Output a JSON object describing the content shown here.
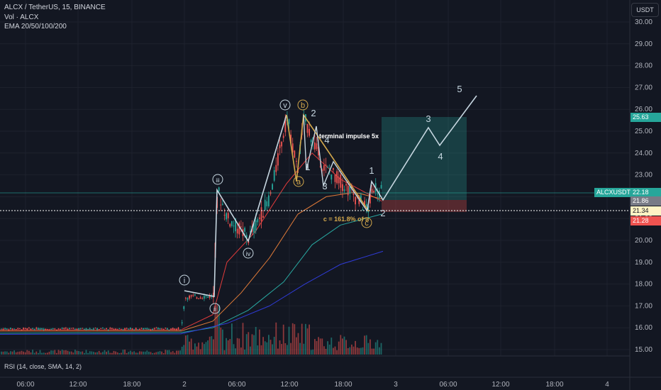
{
  "legend": {
    "pair": "ALCX / TetherUS, 15, BINANCE",
    "vol": "Vol · ALCX",
    "ema": "EMA 20/50/100/200"
  },
  "currency_button": "USDT",
  "rsi_label": "RSI (14, close, SMA, 14, 2)",
  "price_axis": {
    "ticks": [
      "30.00",
      "29.00",
      "28.00",
      "27.00",
      "26.00",
      "25.00",
      "24.00",
      "23.00",
      "22.00",
      "21.00",
      "20.00",
      "19.00",
      "18.00",
      "17.00",
      "16.00",
      "15.00"
    ]
  },
  "time_axis": {
    "ticks": [
      "06:00",
      "12:00",
      "18:00",
      "2",
      "06:00",
      "12:00",
      "18:00",
      "3",
      "06:00",
      "12:00",
      "18:00",
      "4"
    ]
  },
  "price_tags": {
    "symbol": "ALCXUSDT",
    "last": "22.18",
    "target": "25.63",
    "entry": "21.86",
    "crosshair": "21.34",
    "stop": "21.28"
  },
  "wave_labels": {
    "i": "i",
    "ii": "ii",
    "iii": "iii",
    "iv": "iv",
    "v": "v",
    "a": "a",
    "b": "b",
    "c": "c",
    "w2_top": "2",
    "w1": "1",
    "w3": "3",
    "w4": "4",
    "n1": "1",
    "n2": "2",
    "n3": "3",
    "n4": "4",
    "n5": "5"
  },
  "annotations": {
    "terminal": "terminal impulse 5x",
    "fib": "c = 161.8% of a"
  },
  "colors": {
    "background": "#131722",
    "up": "#26a69a",
    "down": "#ef5350",
    "wave": "#c6d6e0",
    "abc": "#d4a94c",
    "ema20": "#e23b3b",
    "ema50": "#e07b39",
    "ema100": "#29a7a0",
    "ema200": "#2f3bd6",
    "target_zone": "#26a69a",
    "stop_zone": "#ef5350"
  }
}
